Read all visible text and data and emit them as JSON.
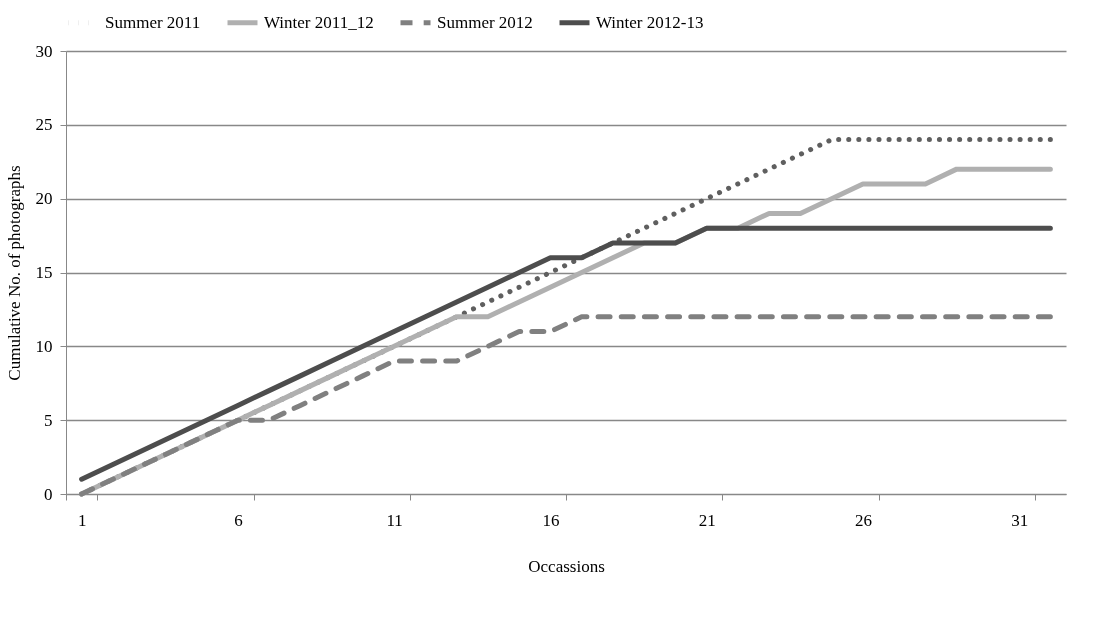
{
  "chart_data": {
    "type": "line",
    "xlabel": "Occassions",
    "ylabel": "Cumulative No. of photographs",
    "categories": [
      "1",
      null,
      null,
      null,
      null,
      "6",
      null,
      null,
      null,
      null,
      "11",
      null,
      null,
      null,
      null,
      "16",
      null,
      null,
      null,
      null,
      "21",
      null,
      null,
      null,
      null,
      "26",
      null,
      null,
      null,
      null,
      "31",
      null
    ],
    "series": [
      {
        "name": "Summer 2011",
        "color": "#5f5f5f",
        "line_style": "dotted",
        "values": [
          0,
          1,
          2,
          3,
          4,
          5,
          6,
          7,
          8,
          9,
          10,
          11,
          12,
          13,
          14,
          15,
          16,
          17,
          18,
          19,
          20,
          21,
          22,
          23,
          24,
          24,
          24,
          24,
          24,
          24,
          24,
          24
        ]
      },
      {
        "name": "Winter 2011_12",
        "color": "#b0b0b0",
        "line_style": "solid",
        "values": [
          0,
          1,
          2,
          3,
          4,
          5,
          6,
          7,
          8,
          9,
          10,
          11,
          12,
          12,
          13,
          14,
          15,
          16,
          17,
          17,
          18,
          18,
          19,
          19,
          20,
          21,
          21,
          21,
          22,
          22,
          22,
          22
        ]
      },
      {
        "name": "Summer 2012",
        "color": "#808080",
        "line_style": "dashed",
        "values": [
          0,
          1,
          2,
          3,
          4,
          5,
          5,
          6,
          7,
          8,
          9,
          9,
          9,
          10,
          11,
          11,
          12,
          12,
          12,
          12,
          12,
          12,
          12,
          12,
          12,
          12,
          12,
          12,
          12,
          12,
          12,
          12
        ]
      },
      {
        "name": "Winter 2012-13",
        "color": "#4d4d4d",
        "line_style": "solid",
        "values": [
          1,
          2,
          3,
          4,
          5,
          6,
          7,
          8,
          9,
          10,
          11,
          12,
          13,
          14,
          15,
          16,
          16,
          17,
          17,
          17,
          18,
          18,
          18,
          18,
          18,
          18,
          18,
          18,
          18,
          18,
          18,
          18
        ]
      }
    ],
    "ylim": [
      0,
      30
    ],
    "yticks": [
      0,
      5,
      10,
      15,
      20,
      25,
      30
    ],
    "grid": "y",
    "legend": "top",
    "marker": "none"
  }
}
